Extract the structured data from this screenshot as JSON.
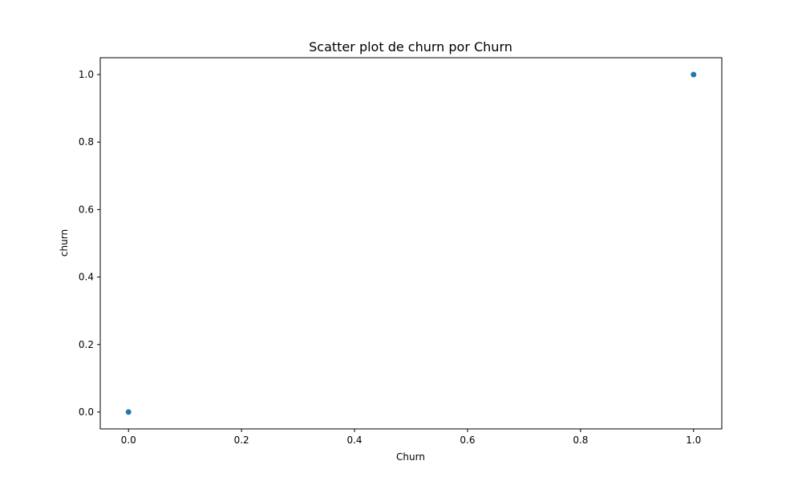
{
  "chart_data": {
    "type": "scatter",
    "title": "Scatter plot de churn por Churn",
    "xlabel": "Churn",
    "ylabel": "churn",
    "xlim": [
      -0.05,
      1.05
    ],
    "ylim": [
      -0.05,
      1.05
    ],
    "x_ticks": [
      0.0,
      0.2,
      0.4,
      0.6,
      0.8,
      1.0
    ],
    "x_tick_labels": [
      "0.0",
      "0.2",
      "0.4",
      "0.6",
      "0.8",
      "1.0"
    ],
    "y_ticks": [
      0.0,
      0.2,
      0.4,
      0.6,
      0.8,
      1.0
    ],
    "y_tick_labels": [
      "0.0",
      "0.2",
      "0.4",
      "0.6",
      "0.8",
      "1.0"
    ],
    "grid": false,
    "series": [
      {
        "name": "churn",
        "color": "#1f77b4",
        "points": [
          {
            "x": 0.0,
            "y": 0.0
          },
          {
            "x": 1.0,
            "y": 1.0
          }
        ]
      }
    ]
  }
}
